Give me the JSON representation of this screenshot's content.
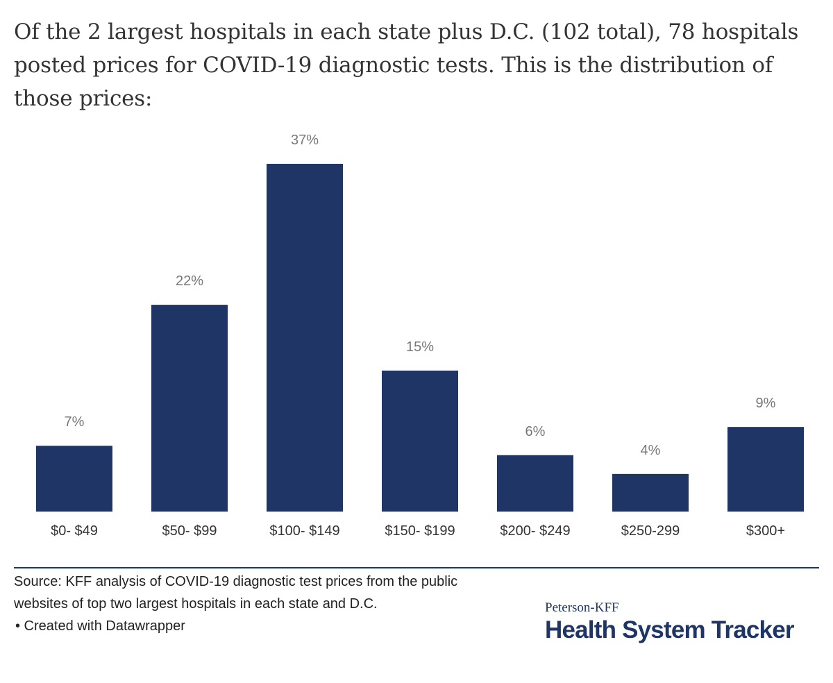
{
  "title": "Of the 2 largest hospitals in each state plus D.C. (102 total), 78 hospitals posted prices for COVID-19 diagnostic tests. This is the distribution of those prices:",
  "chart_data": {
    "type": "bar",
    "categories": [
      "$0- $49",
      "$50- $99",
      "$100- $149",
      "$150- $199",
      "$200- $249",
      "$250-299",
      "$300+"
    ],
    "values": [
      7,
      22,
      37,
      15,
      6,
      4,
      9
    ],
    "value_labels": [
      "7%",
      "22%",
      "37%",
      "15%",
      "6%",
      "4%",
      "9%"
    ],
    "unit": "%",
    "ylim": [
      0,
      37
    ],
    "grid": false,
    "bar_color": "#1f3566"
  },
  "footer": {
    "source": "Source: KFF analysis of COVID-19 diagnostic test prices from the public websites of top two largest hospitals in each state and D.C.",
    "credit": "• Created with Datawrapper"
  },
  "brand": {
    "top": "Peterson-KFF",
    "main": "Health System Tracker"
  }
}
